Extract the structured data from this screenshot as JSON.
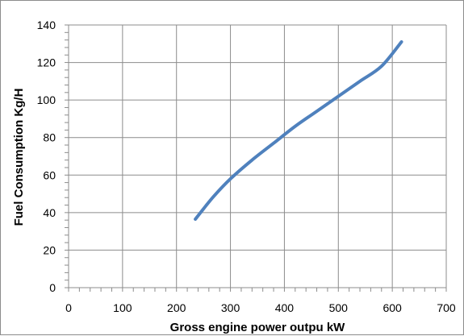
{
  "chart_data": {
    "type": "line",
    "title": "",
    "xlabel": "Gross engine power outpu  kW",
    "ylabel": "Fuel Consumption Kg/H",
    "xlim": [
      0,
      700
    ],
    "ylim": [
      0,
      140
    ],
    "x_ticks": [
      "0",
      "100",
      "200",
      "300",
      "400",
      "500",
      "600",
      "700"
    ],
    "y_ticks": [
      "0",
      "20",
      "40",
      "60",
      "80",
      "100",
      "120",
      "140"
    ],
    "grid": true,
    "legend": "none",
    "series": [
      {
        "color": "#4f81bd",
        "x": [
          235,
          250,
          270,
          300,
          340,
          380,
          420,
          460,
          500,
          540,
          580,
          617
        ],
        "y": [
          36.5,
          42,
          49,
          58,
          68,
          77,
          86,
          94,
          102,
          110,
          118,
          131
        ]
      }
    ]
  },
  "colors": {
    "grid": "#8c8c8c",
    "axis": "#8c8c8c",
    "line": "#4f81bd"
  }
}
